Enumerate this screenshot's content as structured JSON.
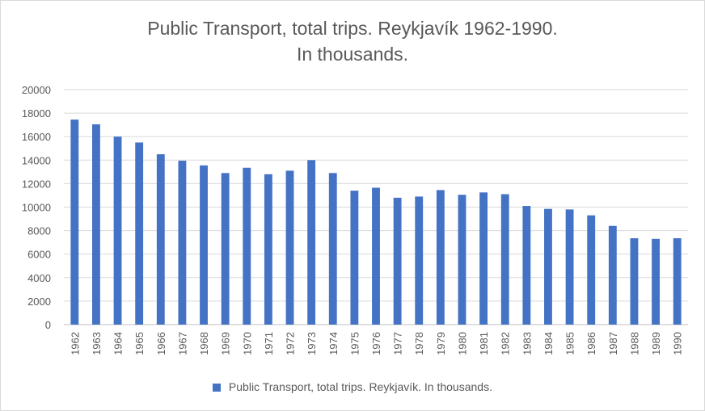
{
  "chart_data": {
    "type": "bar",
    "title_line1": "Public Transport, total trips. Reykjavík 1962-1990.",
    "title_line2": "In thousands.",
    "xlabel": "",
    "ylabel": "",
    "ylim": [
      0,
      20000
    ],
    "yticks": [
      "20000",
      "18000",
      "16000",
      "14000",
      "12000",
      "10000",
      "8000",
      "6000",
      "4000",
      "2000",
      "0"
    ],
    "grid": true,
    "legend_position": "bottom",
    "categories": [
      "1962",
      "1963",
      "1964",
      "1965",
      "1966",
      "1967",
      "1968",
      "1969",
      "1970",
      "1971",
      "1972",
      "1973",
      "1974",
      "1975",
      "1976",
      "1977",
      "1978",
      "1979",
      "1980",
      "1981",
      "1982",
      "1983",
      "1984",
      "1985",
      "1986",
      "1987",
      "1988",
      "1989",
      "1990"
    ],
    "series": [
      {
        "name": "Public Transport, total trips. Reykjavík. In thousands.",
        "color": "#4472c4",
        "values": [
          17450,
          17050,
          16000,
          15500,
          14500,
          13950,
          13550,
          12900,
          13350,
          12800,
          13100,
          14000,
          12900,
          11400,
          11650,
          10800,
          10900,
          11450,
          11050,
          11250,
          11100,
          10100,
          9850,
          9800,
          9300,
          8400,
          7350,
          7300,
          7350
        ]
      }
    ]
  }
}
